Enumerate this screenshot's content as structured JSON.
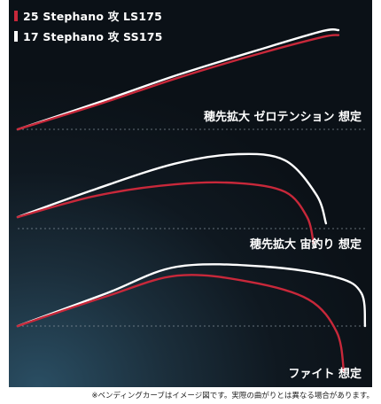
{
  "legend": [
    {
      "name": "25 Stephano 攻 LS175",
      "color": "#c8283a"
    },
    {
      "name": "17 Stephano 攻 SS175",
      "color": "#ffffff"
    }
  ],
  "chart_data": {
    "type": "line",
    "axes": "none (conceptual bending curves)",
    "panels": [
      {
        "label": "穂先拡大 ゼロテンション 想定",
        "series": [
          {
            "name": "25 Stephano 攻 LS175",
            "color": "#c8283a",
            "points": [
              [
                0,
                0
              ],
              [
                0.25,
                0.25
              ],
              [
                0.5,
                0.52
              ],
              [
                0.75,
                0.76
              ],
              [
                0.95,
                0.93
              ],
              [
                1.0,
                0.95
              ]
            ]
          },
          {
            "name": "17 Stephano 攻 SS175",
            "color": "#ffffff",
            "points": [
              [
                0,
                0
              ],
              [
                0.25,
                0.27
              ],
              [
                0.5,
                0.55
              ],
              [
                0.75,
                0.8
              ],
              [
                0.95,
                0.99
              ],
              [
                1.0,
                1.0
              ]
            ]
          }
        ]
      },
      {
        "label": "穂先拡大 宙釣り 想定",
        "series": [
          {
            "name": "25 Stephano 攻 LS175",
            "color": "#c8283a",
            "points": [
              [
                0,
                0
              ],
              [
                0.25,
                0.34
              ],
              [
                0.5,
                0.52
              ],
              [
                0.7,
                0.54
              ],
              [
                0.85,
                0.4
              ],
              [
                0.92,
                0.0
              ],
              [
                0.94,
                -0.4
              ]
            ]
          },
          {
            "name": "17 Stephano 攻 SS175",
            "color": "#ffffff",
            "points": [
              [
                0,
                0
              ],
              [
                0.25,
                0.45
              ],
              [
                0.5,
                0.85
              ],
              [
                0.7,
                1.0
              ],
              [
                0.85,
                0.9
              ],
              [
                0.95,
                0.35
              ],
              [
                0.98,
                -0.1
              ]
            ]
          }
        ]
      },
      {
        "label": "ファイト 想定",
        "series": [
          {
            "name": "25 Stephano 攻 LS175",
            "color": "#c8283a",
            "points": [
              [
                0,
                0
              ],
              [
                0.25,
                0.5
              ],
              [
                0.45,
                0.85
              ],
              [
                0.65,
                0.75
              ],
              [
                0.82,
                0.45
              ],
              [
                0.9,
                -0.1
              ],
              [
                0.92,
                -0.75
              ]
            ]
          },
          {
            "name": "17 Stephano 攻 SS175",
            "color": "#ffffff",
            "points": [
              [
                0,
                0
              ],
              [
                0.25,
                0.55
              ],
              [
                0.45,
                1.0
              ],
              [
                0.7,
                1.0
              ],
              [
                0.9,
                0.82
              ],
              [
                0.97,
                0.55
              ],
              [
                0.98,
                0.0
              ]
            ]
          }
        ]
      }
    ]
  },
  "footnote": "※ベンディングカーブはイメージ図です。実際の曲がりとは異なる場合があります。"
}
